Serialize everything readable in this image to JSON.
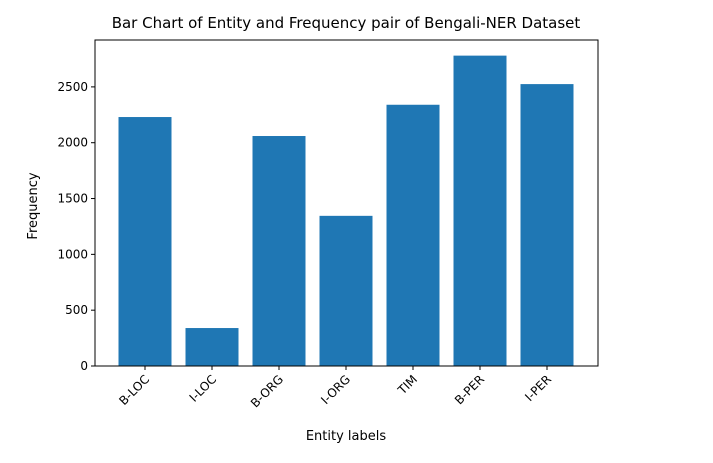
{
  "chart_data": {
    "type": "bar",
    "title": "Bar Chart of Entity and Frequency pair of Bengali-NER Dataset",
    "xlabel": "Entity labels",
    "ylabel": "Frequency",
    "categories": [
      "B-LOC",
      "I-LOC",
      "B-ORG",
      "I-ORG",
      "TIM",
      "B-PER",
      "I-PER"
    ],
    "values": [
      2230,
      340,
      2060,
      1345,
      2340,
      2780,
      2525
    ],
    "yticks": [
      0,
      500,
      1000,
      1500,
      2000,
      2500
    ],
    "ylim": [
      0,
      2920
    ],
    "bar_color": "#1f77b4",
    "grid": false
  }
}
